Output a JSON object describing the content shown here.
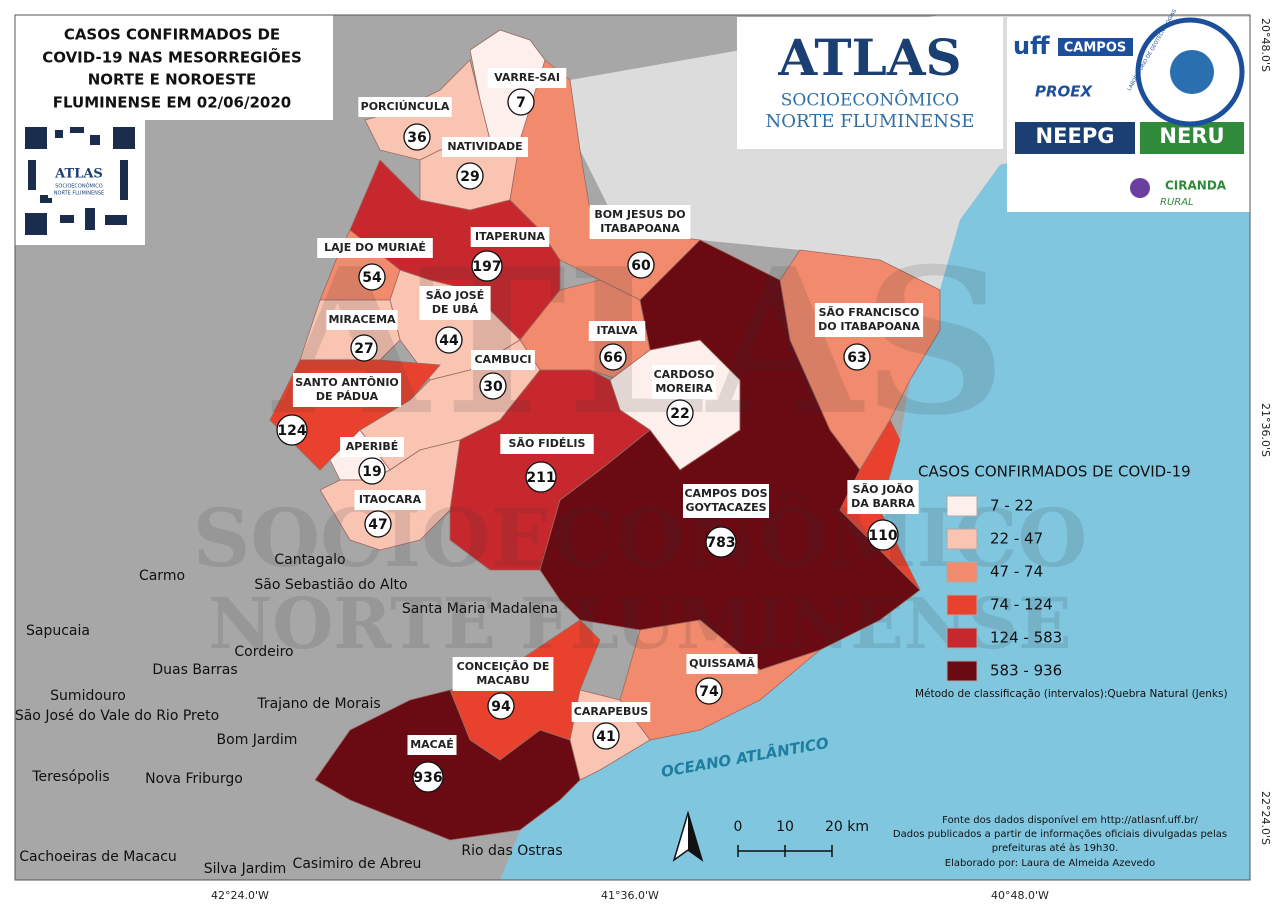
{
  "title": [
    "CASOS CONFIRMADOS DE",
    "COVID-19 NAS MESORREGIÕES",
    "NORTE E NOROESTE",
    "FLUMINENSE EM 02/06/2020"
  ],
  "qr_logo": [
    "ATLAS",
    "SOCIOECONÔMICO",
    "NORTE FLUMINENSE"
  ],
  "atlas_logo": [
    "ATLAS",
    "SOCIOECONÔMICO",
    "NORTE FLUMINENSE"
  ],
  "partner_logos": [
    "uff",
    "CAMPOS",
    "PROEX",
    "NEEPG",
    "NERU",
    "CIRANDA",
    "RURAL",
    "LABORATÓRIO DE GEOTECNOLOGIAS"
  ],
  "watermark": [
    "ATLAS",
    "SOCIOECONÔMICO",
    "NORTE FLUMINENSE"
  ],
  "municipalities": [
    {
      "name": [
        "VARRE-SAI"
      ],
      "cases": 7,
      "color": "#fdf0ec"
    },
    {
      "name": [
        "PORCIÚNCULA"
      ],
      "cases": 36,
      "color": "#f9c4b2"
    },
    {
      "name": [
        "NATIVIDADE"
      ],
      "cases": 29,
      "color": "#f9c4b2"
    },
    {
      "name": [
        "BOM JESUS DO",
        "ITABAPOANA"
      ],
      "cases": 60,
      "color": "#f28a6d"
    },
    {
      "name": [
        "ITAPERUNA"
      ],
      "cases": 197,
      "color": "#c7282e"
    },
    {
      "name": [
        "LAJE DO MURIAÉ"
      ],
      "cases": 54,
      "color": "#f28a6d"
    },
    {
      "name": [
        "SÃO JOSÉ",
        "DE UBÁ"
      ],
      "cases": 44,
      "color": "#f9c4b2"
    },
    {
      "name": [
        "MIRACEMA"
      ],
      "cases": 27,
      "color": "#f9c4b2"
    },
    {
      "name": [
        "ITALVA"
      ],
      "cases": 66,
      "color": "#f28a6d"
    },
    {
      "name": [
        "CAMBUCI"
      ],
      "cases": 30,
      "color": "#f9c4b2"
    },
    {
      "name": [
        "CARDOSO",
        "MOREIRA"
      ],
      "cases": 22,
      "color": "#fdf0ec"
    },
    {
      "name": [
        "SÃO FRANCISCO",
        "DO ITABAPOANA"
      ],
      "cases": 63,
      "color": "#f28a6d"
    },
    {
      "name": [
        "SANTO ANTÔNIO",
        "DE PÁDUA"
      ],
      "cases": 124,
      "color": "#e8422f"
    },
    {
      "name": [
        "APERIBÉ"
      ],
      "cases": 19,
      "color": "#fdf0ec"
    },
    {
      "name": [
        "SÃO FIDÉLIS"
      ],
      "cases": 211,
      "color": "#c7282e"
    },
    {
      "name": [
        "CAMPOS DOS",
        "GOYTACAZES"
      ],
      "cases": 783,
      "color": "#6a0b13"
    },
    {
      "name": [
        "SÃO JOÃO",
        "DA BARRA"
      ],
      "cases": 110,
      "color": "#e8422f"
    },
    {
      "name": [
        "ITAOCARA"
      ],
      "cases": 47,
      "color": "#f9c4b2"
    },
    {
      "name": [
        "CONCEIÇÃO DE",
        "MACABU"
      ],
      "cases": 94,
      "color": "#e8422f"
    },
    {
      "name": [
        "QUISSAMÃ"
      ],
      "cases": 74,
      "color": "#f28a6d"
    },
    {
      "name": [
        "CARAPEBUS"
      ],
      "cases": 41,
      "color": "#f9c4b2"
    },
    {
      "name": [
        "MACAÉ"
      ],
      "cases": 936,
      "color": "#6a0b13"
    }
  ],
  "neighbors": [
    "Cantagalo",
    "Carmo",
    "São Sebastião do Alto",
    "Santa Maria Madalena",
    "Sapucaia",
    "Cordeiro",
    "Duas Barras",
    "Sumidouro",
    "São José do Vale do Rio Preto",
    "Trajano de Morais",
    "Bom Jardim",
    "Teresópolis",
    "Nova Friburgo",
    "Cachoeiras de Macacu",
    "Silva Jardim",
    "Casimiro de Abreu",
    "Rio das Ostras"
  ],
  "ocean": "OCEANO ATLÂNTICO",
  "legend": {
    "title": "CASOS CONFIRMADOS DE COVID-19",
    "classes": [
      {
        "label": "7 - 22",
        "color": "#fdf0ec"
      },
      {
        "label": "22 - 47",
        "color": "#f9c4b2"
      },
      {
        "label": "47 - 74",
        "color": "#f28a6d"
      },
      {
        "label": "74 - 124",
        "color": "#e8422f"
      },
      {
        "label": "124 - 583",
        "color": "#c7282e"
      },
      {
        "label": "583 - 936",
        "color": "#6a0b13"
      }
    ],
    "method": "Método de classificação (intervalos):Quebra Natural (Jenks)"
  },
  "scale": [
    "0",
    "10",
    "20 km"
  ],
  "source": [
    "Fonte dos dados disponível em http://atlasnf.uff.br/",
    "Dados publicados a partir de informações oficiais divulgadas pelas",
    "prefeituras até às 19h30.",
    "Elaborado por: Laura de Almeida Azevedo"
  ],
  "lat_labels": [
    "20°48.0'S",
    "21°36.0'S",
    "22°24.0'S"
  ],
  "lon_labels": [
    "42°24.0'W",
    "41°36.0'W",
    "40°48.0'W"
  ]
}
